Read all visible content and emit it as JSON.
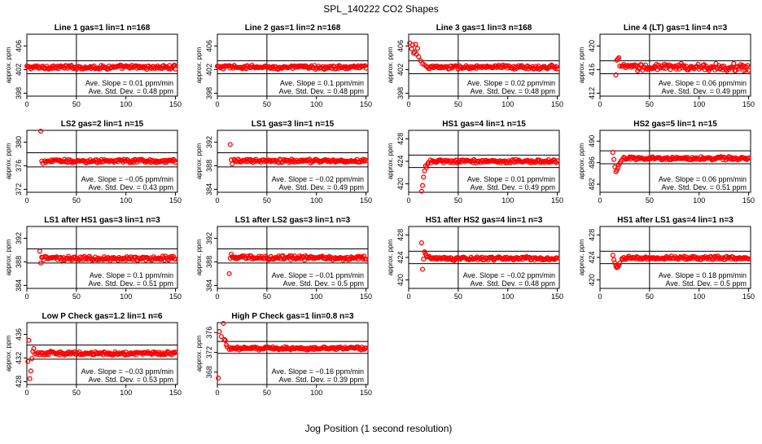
{
  "figure": {
    "title": "SPL_140222  CO2 Shapes",
    "xlabel": "Jog Position (1 second resolution)",
    "ylabel": "approx. ppm",
    "point_color": "#ff0000"
  },
  "chart_data": [
    {
      "type": "scatter",
      "title": "Line 1 gas=1 lin=1 n=168",
      "xlim": [
        0,
        152
      ],
      "ylim": [
        397.5,
        408
      ],
      "yticks": [
        398,
        402,
        406
      ],
      "xticks": [
        0,
        50,
        100,
        150
      ],
      "vline": 50,
      "hlines": [
        401.3,
        403.5
      ],
      "baseline": 402.4,
      "noise": 0.5,
      "start": 0,
      "end": 150,
      "transient": [],
      "slope_text": "Ave. Slope = 0.01  ppm/min",
      "std_text": "Ave. Std. Dev. = 0.48  ppm"
    },
    {
      "type": "scatter",
      "title": "Line 2 gas=1 lin=2 n=168",
      "xlim": [
        0,
        152
      ],
      "ylim": [
        397.5,
        408
      ],
      "yticks": [
        398,
        402,
        406
      ],
      "xticks": [
        0,
        50,
        100,
        150
      ],
      "vline": 50,
      "hlines": [
        401.3,
        403.5
      ],
      "baseline": 402.4,
      "noise": 0.5,
      "start": 0,
      "end": 150,
      "transient": [],
      "slope_text": "Ave. Slope = 0.1  ppm/min",
      "std_text": "Ave. Std. Dev. = 0.48  ppm"
    },
    {
      "type": "scatter",
      "title": "Line 3 gas=1 lin=3 n=168",
      "xlim": [
        0,
        152
      ],
      "ylim": [
        397.5,
        408
      ],
      "yticks": [
        398,
        402,
        406
      ],
      "xticks": [
        0,
        50,
        100,
        150
      ],
      "vline": 50,
      "hlines": [
        401.3,
        403.5
      ],
      "baseline": 402.4,
      "noise": 0.5,
      "start": 18,
      "end": 150,
      "transient": [
        [
          1,
          406.5
        ],
        [
          3,
          405.5
        ],
        [
          4,
          406.2
        ],
        [
          5,
          404.8
        ],
        [
          6,
          405.0
        ],
        [
          7,
          406.3
        ],
        [
          8,
          404.6
        ],
        [
          9,
          405.6
        ],
        [
          10,
          404.2
        ],
        [
          12,
          403.5
        ],
        [
          14,
          403.0
        ],
        [
          16,
          402.8
        ]
      ],
      "slope_text": "Ave. Slope = 0.02  ppm/min",
      "std_text": "Ave. Std. Dev. = 0.48  ppm"
    },
    {
      "type": "scatter",
      "title": "Line 4 (LT) gas=1 lin=4 n=3",
      "xlim": [
        0,
        152
      ],
      "ylim": [
        411.5,
        422
      ],
      "yticks": [
        412,
        416,
        420
      ],
      "xticks": [
        0,
        50,
        100,
        150
      ],
      "vline": 50,
      "hlines": [
        415.3,
        417.5
      ],
      "baseline": 416.4,
      "noise": 0.9,
      "start": 22,
      "end": 150,
      "transient": [
        [
          16,
          415.1
        ],
        [
          17,
          417.6
        ],
        [
          18,
          417.8
        ],
        [
          19,
          418.0
        ],
        [
          20,
          416.6
        ]
      ],
      "slope_text": "Ave. Slope = 0.06  ppm/min",
      "std_text": "Ave. Std. Dev. = 0.49  ppm"
    },
    {
      "type": "scatter",
      "title": "LS2 gas=2 lin=1 n=15",
      "xlim": [
        0,
        152
      ],
      "ylim": [
        371.5,
        382
      ],
      "yticks": [
        372,
        376,
        380
      ],
      "xticks": [
        0,
        50,
        100,
        150
      ],
      "vline": 50,
      "hlines": [
        375.8,
        378.2
      ],
      "baseline": 376.8,
      "noise": 0.45,
      "start": 18,
      "end": 150,
      "transient": [
        [
          14,
          381.9
        ],
        [
          15,
          376.8
        ],
        [
          16,
          376.4
        ]
      ],
      "slope_text": "Ave. Slope = −0.05  ppm/min",
      "std_text": "Ave. Std. Dev. = 0.43  ppm"
    },
    {
      "type": "scatter",
      "title": "LS1 gas=3 lin=1 n=15",
      "xlim": [
        0,
        152
      ],
      "ylim": [
        383.5,
        394
      ],
      "yticks": [
        384,
        388,
        392
      ],
      "xticks": [
        0,
        50,
        100,
        150
      ],
      "vline": 50,
      "hlines": [
        387.8,
        390.2
      ],
      "baseline": 388.8,
      "noise": 0.45,
      "start": 17,
      "end": 150,
      "transient": [
        [
          13,
          391.6
        ],
        [
          14,
          389.0
        ],
        [
          15,
          388.3
        ]
      ],
      "slope_text": "Ave. Slope = −0.02  ppm/min",
      "std_text": "Ave. Std. Dev. = 0.49  ppm"
    },
    {
      "type": "scatter",
      "title": "HS1 gas=4 lin=1 n=15",
      "xlim": [
        0,
        152
      ],
      "ylim": [
        418.5,
        429.5
      ],
      "yticks": [
        420,
        424,
        428
      ],
      "xticks": [
        0,
        50,
        100,
        150
      ],
      "vline": 50,
      "hlines": [
        422.9,
        425.1
      ],
      "baseline": 424.0,
      "noise": 0.45,
      "start": 22,
      "end": 150,
      "transient": [
        [
          13,
          418.7
        ],
        [
          14,
          419.7
        ],
        [
          15,
          421.2
        ],
        [
          16,
          422.3
        ],
        [
          17,
          423.2
        ],
        [
          18,
          422.9
        ],
        [
          19,
          423.5
        ],
        [
          20,
          423.8
        ]
      ],
      "slope_text": "Ave. Slope = 0.01  ppm/min",
      "std_text": "Ave. Std. Dev. = 0.49  ppm"
    },
    {
      "type": "scatter",
      "title": "HS2 gas=5 lin=1 n=15",
      "xlim": [
        0,
        152
      ],
      "ylim": [
        480.5,
        492
      ],
      "yticks": [
        482,
        486,
        490
      ],
      "xticks": [
        0,
        50,
        100,
        150
      ],
      "vline": 50,
      "hlines": [
        485.8,
        488.2
      ],
      "baseline": 486.8,
      "noise": 0.45,
      "start": 24,
      "end": 150,
      "transient": [
        [
          13,
          487.9
        ],
        [
          14,
          486.6
        ],
        [
          15,
          485.2
        ],
        [
          16,
          484.3
        ],
        [
          17,
          484.6
        ],
        [
          18,
          485.0
        ],
        [
          19,
          485.6
        ],
        [
          20,
          485.9
        ],
        [
          21,
          486.2
        ],
        [
          22,
          486.5
        ]
      ],
      "slope_text": "Ave. Slope = 0.06  ppm/min",
      "std_text": "Ave. Std. Dev. = 0.51  ppm"
    },
    {
      "type": "scatter",
      "title": "LS1 after HS1 gas=3 lin=1 n=3",
      "xlim": [
        0,
        152
      ],
      "ylim": [
        383.5,
        394
      ],
      "yticks": [
        384,
        388,
        392
      ],
      "xticks": [
        0,
        50,
        100,
        150
      ],
      "vline": 50,
      "hlines": [
        387.8,
        390.2
      ],
      "baseline": 388.6,
      "noise": 0.55,
      "start": 15,
      "end": 150,
      "transient": [
        [
          13,
          389.8
        ],
        [
          14,
          387.8
        ]
      ],
      "slope_text": "Ave. Slope = 0.1  ppm/min",
      "std_text": "Ave. Std. Dev. = 0.51  ppm"
    },
    {
      "type": "scatter",
      "title": "LS1 after LS2 gas=3 lin=1 n=3",
      "xlim": [
        0,
        152
      ],
      "ylim": [
        383.5,
        394
      ],
      "yticks": [
        384,
        388,
        392
      ],
      "xticks": [
        0,
        50,
        100,
        150
      ],
      "vline": 50,
      "hlines": [
        387.8,
        390.2
      ],
      "baseline": 388.7,
      "noise": 0.55,
      "start": 15,
      "end": 150,
      "transient": [
        [
          12,
          386.0
        ],
        [
          13,
          388.6
        ],
        [
          14,
          389.3
        ]
      ],
      "slope_text": "Ave. Slope = −0.01  ppm/min",
      "std_text": "Ave. Std. Dev. = 0.5  ppm"
    },
    {
      "type": "scatter",
      "title": "HS1 after HS2 gas=4 lin=1 n=3",
      "xlim": [
        0,
        152
      ],
      "ylim": [
        418.5,
        429.5
      ],
      "yticks": [
        420,
        424,
        428
      ],
      "xticks": [
        0,
        50,
        100,
        150
      ],
      "vline": 50,
      "hlines": [
        422.9,
        425.1
      ],
      "baseline": 423.8,
      "noise": 0.45,
      "start": 21,
      "end": 150,
      "transient": [
        [
          13,
          426.6
        ],
        [
          14,
          421.9
        ],
        [
          15,
          423.7
        ],
        [
          16,
          425.0
        ],
        [
          17,
          424.6
        ],
        [
          18,
          424.3
        ],
        [
          19,
          424.1
        ]
      ],
      "slope_text": "Ave. Slope = −0.02  ppm/min",
      "std_text": "Ave. Std. Dev. = 0.48  ppm"
    },
    {
      "type": "scatter",
      "title": "HS1 after LS1 gas=4 lin=1 n=3",
      "xlim": [
        0,
        152
      ],
      "ylim": [
        418.5,
        429.5
      ],
      "yticks": [
        420,
        424,
        428
      ],
      "xticks": [
        0,
        50,
        100,
        150
      ],
      "vline": 50,
      "hlines": [
        422.9,
        425.1
      ],
      "baseline": 423.9,
      "noise": 0.45,
      "start": 22,
      "end": 150,
      "transient": [
        [
          13,
          424.4
        ],
        [
          14,
          423.6
        ],
        [
          15,
          423.0
        ],
        [
          16,
          422.4
        ],
        [
          17,
          422.2
        ],
        [
          18,
          422.3
        ],
        [
          19,
          422.6
        ],
        [
          20,
          423.0
        ]
      ],
      "slope_text": "Ave. Slope = 0.18  ppm/min",
      "std_text": "Ave. Std. Dev. = 0.5  ppm"
    },
    {
      "type": "scatter",
      "title": "Low P Check gas=1.2 lin=1 n=6",
      "xlim": [
        0,
        152
      ],
      "ylim": [
        427.5,
        438
      ],
      "yticks": [
        428,
        432,
        436
      ],
      "xticks": [
        0,
        50,
        100,
        150
      ],
      "vline": 50,
      "hlines": [
        431.8,
        434.2
      ],
      "baseline": 432.8,
      "noise": 0.45,
      "start": 10,
      "end": 150,
      "transient": [
        [
          1,
          431.4
        ],
        [
          2,
          435.0
        ],
        [
          3,
          428.5
        ],
        [
          4,
          429.8
        ],
        [
          5,
          431.9
        ],
        [
          6,
          433.1
        ],
        [
          7,
          433.6
        ],
        [
          8,
          432.7
        ]
      ],
      "slope_text": "Ave. Slope = −0.03  ppm/min",
      "std_text": "Ave. Std. Dev. = 0.53  ppm"
    },
    {
      "type": "scatter",
      "title": "High P Check gas=1 lin=0.8 n=3",
      "xlim": [
        0,
        152
      ],
      "ylim": [
        365.5,
        378
      ],
      "yticks": [
        368,
        372,
        376
      ],
      "xticks": [
        0,
        50,
        100,
        150
      ],
      "vline": 50,
      "hlines": [
        371.8,
        374.2
      ],
      "baseline": 372.8,
      "noise": 0.45,
      "start": 12,
      "end": 150,
      "transient": [
        [
          1,
          366.8
        ],
        [
          2,
          376.2
        ],
        [
          4,
          375.2
        ],
        [
          6,
          378.0
        ],
        [
          7,
          374.6
        ],
        [
          8,
          374.4
        ],
        [
          9,
          373.5
        ],
        [
          10,
          373.1
        ]
      ],
      "slope_text": "Ave. Slope = −0.16  ppm/min",
      "std_text": "Ave. Std. Dev. = 0.39  ppm"
    }
  ]
}
